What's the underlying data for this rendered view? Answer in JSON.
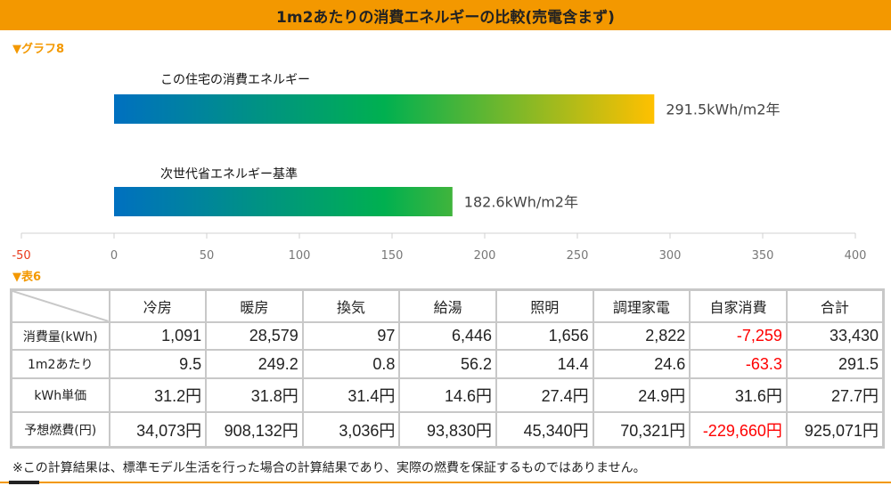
{
  "title": "1m2あたりの消費エネルギーの比較(売電含まず)",
  "graph_label": "▼グラフ8",
  "table_label": "▼表6",
  "chart_data": {
    "type": "bar",
    "orientation": "horizontal",
    "categories": [
      "この住宅の消費エネルギー",
      "次世代省エネルギー基準"
    ],
    "values": [
      291.5,
      182.6
    ],
    "data_labels": [
      "291.5kWh/m2年",
      "182.6kWh/m2年"
    ],
    "xlim": [
      -50,
      400
    ],
    "ticks": [
      -50,
      0,
      50,
      100,
      150,
      200,
      250,
      300,
      350,
      400
    ],
    "tick_labels": [
      "-50",
      "0",
      "50",
      "100",
      "150",
      "200",
      "250",
      "300",
      "350",
      "400"
    ],
    "grid": false,
    "bar_gradient": [
      "#0070c0",
      "#00b050",
      "#ffc000"
    ]
  },
  "table": {
    "columns": [
      "冷房",
      "暖房",
      "換気",
      "給湯",
      "照明",
      "調理家電",
      "自家消費",
      "合計"
    ],
    "rows": [
      {
        "label": "消費量(kWh)",
        "cells": [
          "1,091",
          "28,579",
          "97",
          "6,446",
          "1,656",
          "2,822",
          "-7,259",
          "33,430"
        ]
      },
      {
        "label": "1m2あたり",
        "cells": [
          "9.5",
          "249.2",
          "0.8",
          "56.2",
          "14.4",
          "24.6",
          "-63.3",
          "291.5"
        ]
      },
      {
        "label": "kWh単価",
        "cells": [
          "31.2円",
          "31.8円",
          "31.4円",
          "14.6円",
          "27.4円",
          "24.9円",
          "31.6円",
          "27.7円"
        ]
      },
      {
        "label": "予想燃費(円)",
        "cells": [
          "34,073円",
          "908,132円",
          "3,036円",
          "93,830円",
          "45,340円",
          "70,321円",
          "-229,660円",
          "925,071円"
        ]
      }
    ]
  },
  "note": "※この計算結果は、標準モデル生活を行った場合の計算結果であり、実際の燃費を保証するものではありません。"
}
